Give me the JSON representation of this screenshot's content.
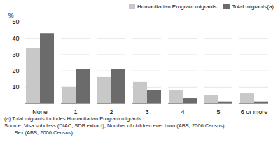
{
  "chart_data": {
    "type": "bar",
    "categories": [
      "None",
      "1",
      "2",
      "3",
      "4",
      "5",
      "6 or more"
    ],
    "series": [
      {
        "name": "Humanitarian Program migrants",
        "color": "#c8c8c8",
        "values": [
          34,
          10,
          16,
          13,
          8,
          5,
          6
        ]
      },
      {
        "name": "Total migrants(a)",
        "color": "#6b6b6b",
        "values": [
          43,
          21,
          21,
          8,
          3,
          1,
          1
        ]
      }
    ],
    "ylabel": "%",
    "ylim": [
      0,
      50
    ],
    "yticks": [
      10,
      20,
      30,
      40,
      50
    ],
    "grid": true,
    "legend": "upper right",
    "annotations": [
      "(a) Total migrants includes Humanitarian Program migrants.",
      "Source: Visa subclass (DIAC, SDB extract), Number of children ever born (ABS, 2006 Census),",
      "       Sex (ABS, 2006 Census)"
    ]
  }
}
